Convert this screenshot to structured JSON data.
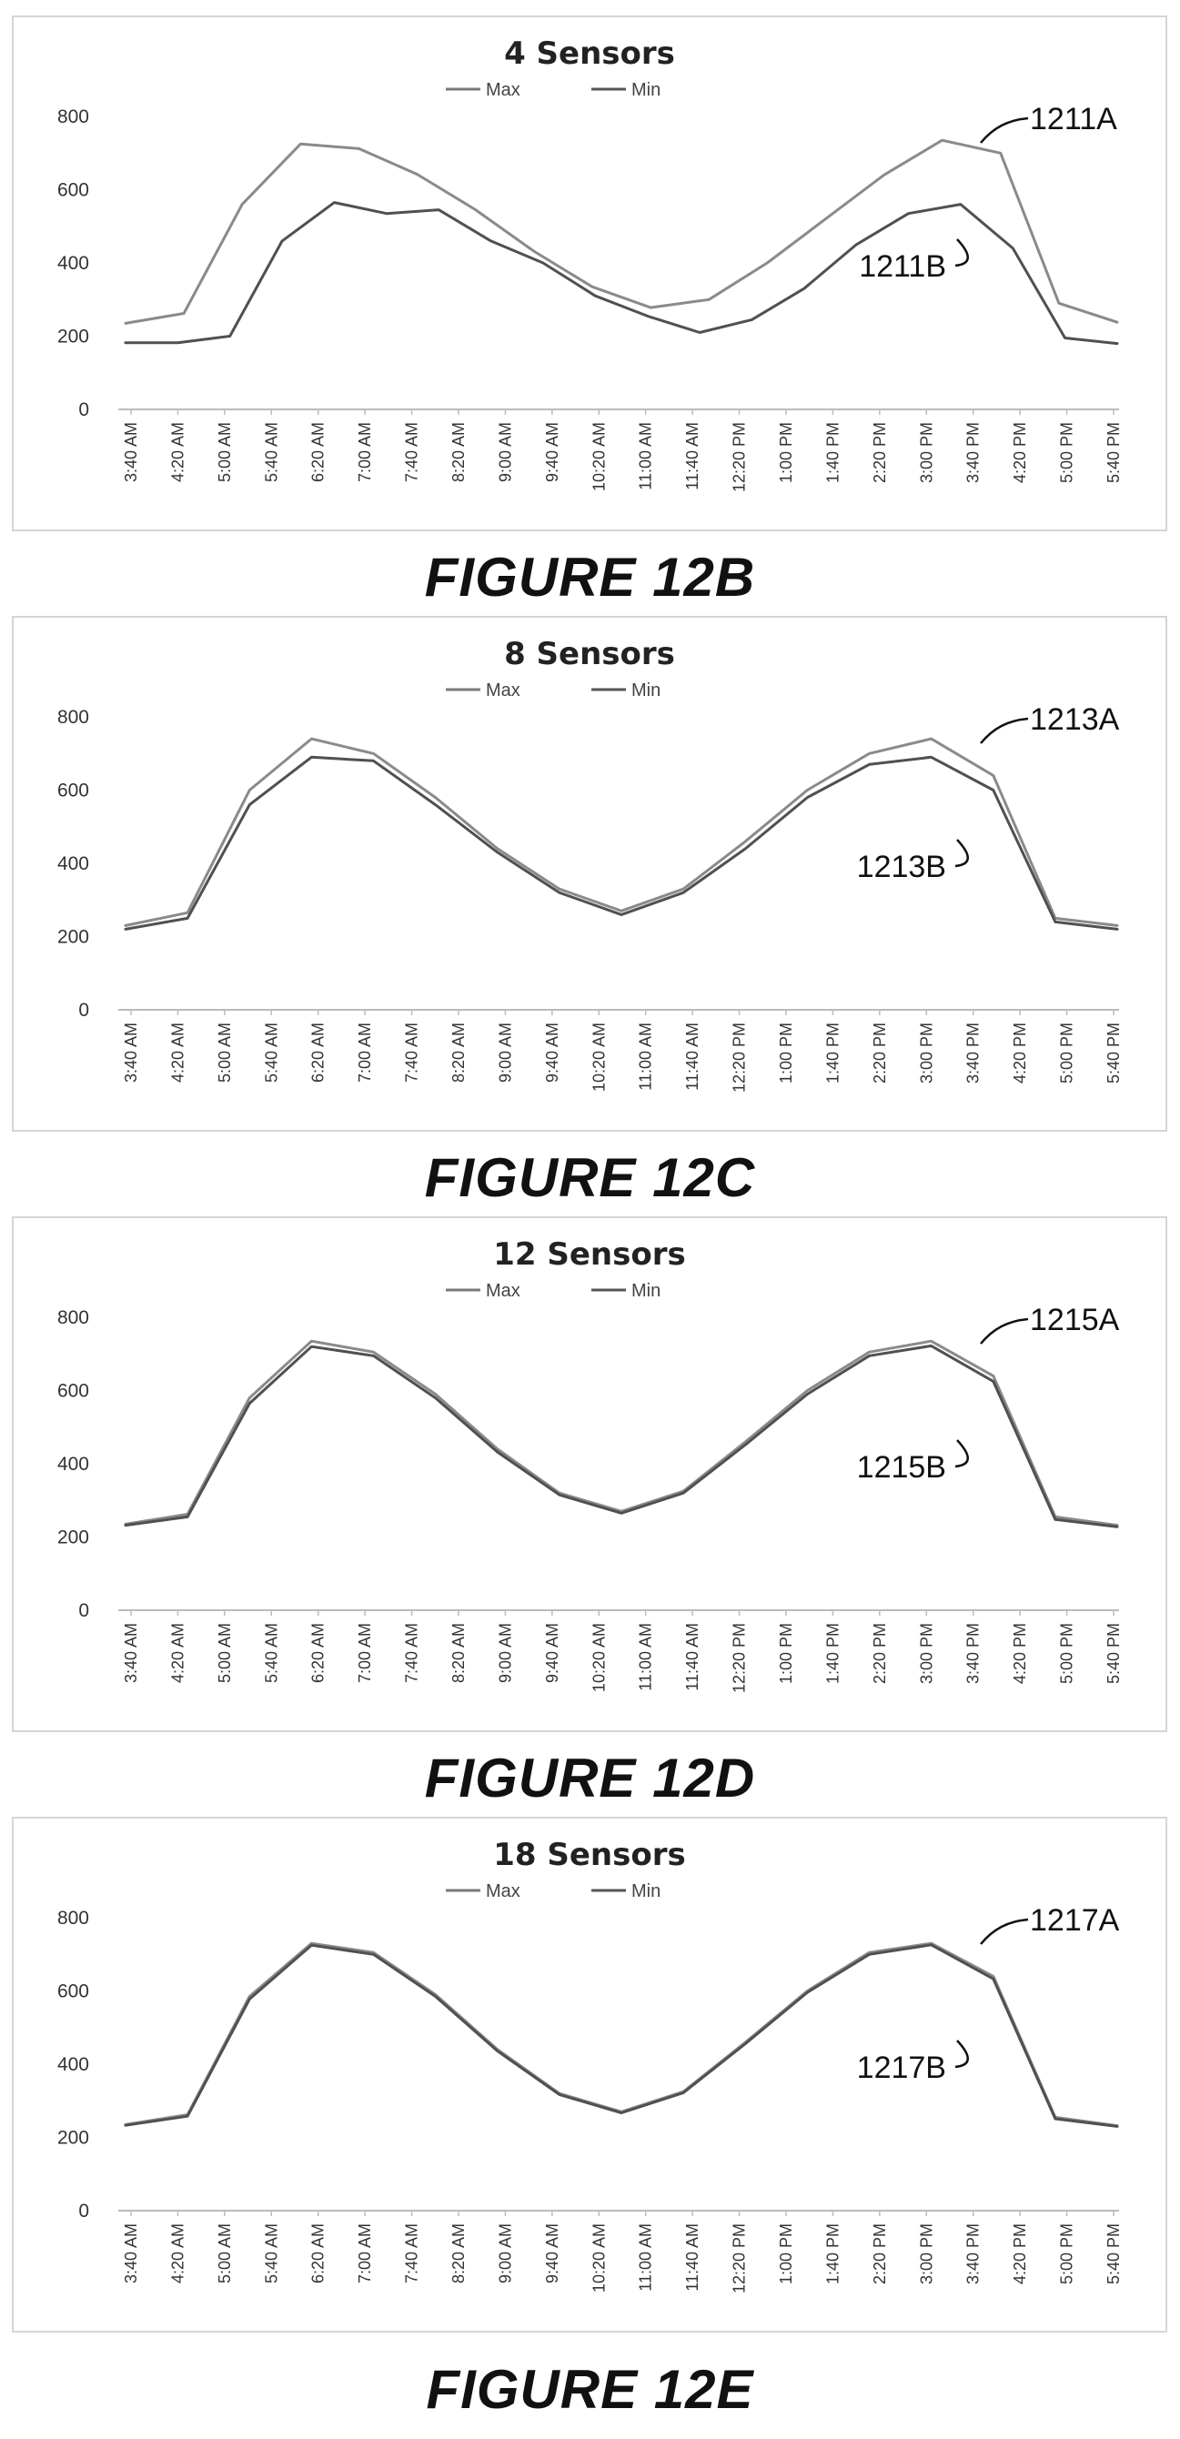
{
  "figures": [
    {
      "caption": "FIGURE 12B",
      "chart_data": {
        "type": "line",
        "title": "4 Sensors",
        "legend": [
          "Max",
          "Min"
        ],
        "legend_position": "top-center",
        "ylim": [
          0,
          800
        ],
        "yticks": [
          0,
          200,
          400,
          600,
          800
        ],
        "x_tick_labels": [
          "3:40 AM",
          "4:20 AM",
          "5:00 AM",
          "5:40 AM",
          "6:20 AM",
          "7:00 AM",
          "7:40 AM",
          "8:20 AM",
          "9:00 AM",
          "9:40 AM",
          "10:20 AM",
          "11:00 AM",
          "11:40 AM",
          "12:20 PM",
          "1:00 PM",
          "1:40 PM",
          "2:20 PM",
          "3:00 PM",
          "3:40 PM",
          "4:20 PM",
          "5:00 PM",
          "5:40 PM"
        ],
        "series": [
          {
            "name": "Max",
            "values": [
              235,
              262,
              560,
              725,
              712,
              642,
              545,
              432,
              335,
              278,
              300,
              400,
              520,
              640,
              735,
              700,
              290,
              238
            ]
          },
          {
            "name": "Min",
            "values": [
              182,
              182,
              200,
              460,
              565,
              535,
              545,
              460,
              400,
              310,
              255,
              210,
              245,
              330,
              450,
              535,
              560,
              440,
              195,
              180
            ]
          }
        ],
        "callouts": [
          "1211A",
          "1211B"
        ]
      }
    },
    {
      "caption": "FIGURE 12C",
      "chart_data": {
        "type": "line",
        "title": "8 Sensors",
        "legend": [
          "Max",
          "Min"
        ],
        "legend_position": "top-center",
        "ylim": [
          0,
          800
        ],
        "yticks": [
          0,
          200,
          400,
          600,
          800
        ],
        "x_tick_labels": [
          "3:40 AM",
          "4:20 AM",
          "5:00 AM",
          "5:40 AM",
          "6:20 AM",
          "7:00 AM",
          "7:40 AM",
          "8:20 AM",
          "9:00 AM",
          "9:40 AM",
          "10:20 AM",
          "11:00 AM",
          "11:40 AM",
          "12:20 PM",
          "1:00 PM",
          "1:40 PM",
          "2:20 PM",
          "3:00 PM",
          "3:40 PM",
          "4:20 PM",
          "5:00 PM",
          "5:40 PM"
        ],
        "series": [
          {
            "name": "Max",
            "values": [
              230,
              265,
              600,
              740,
              700,
              580,
              440,
              330,
              270,
              330,
              460,
              600,
              700,
              740,
              640,
              250,
              230
            ]
          },
          {
            "name": "Min",
            "values": [
              220,
              250,
              560,
              690,
              680,
              560,
              430,
              320,
              260,
              320,
              440,
              580,
              670,
              690,
              600,
              240,
              220
            ]
          }
        ],
        "callouts": [
          "1213A",
          "1213B"
        ]
      }
    },
    {
      "caption": "FIGURE 12D",
      "chart_data": {
        "type": "line",
        "title": "12 Sensors",
        "legend": [
          "Max",
          "Min"
        ],
        "legend_position": "top-center",
        "ylim": [
          0,
          800
        ],
        "yticks": [
          0,
          200,
          400,
          600,
          800
        ],
        "x_tick_labels": [
          "3:40 AM",
          "4:20 AM",
          "5:00 AM",
          "5:40 AM",
          "6:20 AM",
          "7:00 AM",
          "7:40 AM",
          "8:20 AM",
          "9:00 AM",
          "9:40 AM",
          "10:20 AM",
          "11:00 AM",
          "11:40 AM",
          "12:20 PM",
          "1:00 PM",
          "1:40 PM",
          "2:20 PM",
          "3:00 PM",
          "3:40 PM",
          "4:20 PM",
          "5:00 PM",
          "5:40 PM"
        ],
        "series": [
          {
            "name": "Max",
            "values": [
              235,
              262,
              580,
              735,
              705,
              590,
              440,
              320,
              270,
              325,
              460,
              600,
              705,
              735,
              640,
              255,
              232
            ]
          },
          {
            "name": "Min",
            "values": [
              232,
              255,
              565,
              720,
              695,
              580,
              432,
              315,
              265,
              320,
              452,
              590,
              695,
              722,
              625,
              248,
              228
            ]
          }
        ],
        "callouts": [
          "1215A",
          "1215B"
        ]
      }
    },
    {
      "caption": "FIGURE 12E",
      "chart_data": {
        "type": "line",
        "title": "18 Sensors",
        "legend": [
          "Max",
          "Min"
        ],
        "legend_position": "top-center",
        "ylim": [
          0,
          800
        ],
        "yticks": [
          0,
          200,
          400,
          600,
          800
        ],
        "x_tick_labels": [
          "3:40 AM",
          "4:20 AM",
          "5:00 AM",
          "5:40 AM",
          "6:20 AM",
          "7:00 AM",
          "7:40 AM",
          "8:20 AM",
          "9:00 AM",
          "9:40 AM",
          "10:20 AM",
          "11:00 AM",
          "11:40 AM",
          "12:20 PM",
          "1:00 PM",
          "1:40 PM",
          "2:20 PM",
          "3:00 PM",
          "3:40 PM",
          "4:20 PM",
          "5:00 PM",
          "5:40 PM"
        ],
        "series": [
          {
            "name": "Max",
            "values": [
              235,
              262,
              585,
              730,
              705,
              590,
              440,
              320,
              270,
              325,
              460,
              600,
              705,
              730,
              640,
              255,
              232
            ]
          },
          {
            "name": "Min",
            "values": [
              233,
              258,
              578,
              725,
              700,
              585,
              436,
              317,
              267,
              322,
              456,
              596,
              700,
              726,
              633,
              251,
              230
            ]
          }
        ],
        "callouts": [
          "1217A",
          "1217B"
        ]
      }
    }
  ]
}
